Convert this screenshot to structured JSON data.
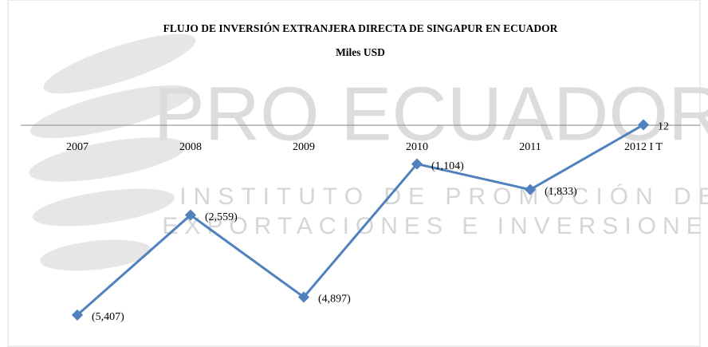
{
  "chart_data": {
    "type": "line",
    "title": "FLUJO DE INVERSIÓN EXTRANJERA DIRECTA DE SINGAPUR EN ECUADOR",
    "subtitle": "Miles USD",
    "watermark": [
      "PRO ECUADOR",
      "INSTITUTO DE PROMOCIÓN DE",
      "EXPORTACIONES E INVERSIONES"
    ],
    "categories": [
      "2007",
      "2008",
      "2009",
      "2010",
      "2011",
      "2012 I T"
    ],
    "series": [
      {
        "name": "Singapur",
        "color": "#4f81bd",
        "values": [
          -5407,
          -2559,
          -4897,
          -1104,
          -1833,
          12
        ],
        "value_labels": [
          "(5,407)",
          "(2,559)",
          "(4,897)",
          "(1,104)",
          "(1,833)",
          "12"
        ]
      }
    ],
    "ylim": [
      -6000,
      1000
    ]
  }
}
